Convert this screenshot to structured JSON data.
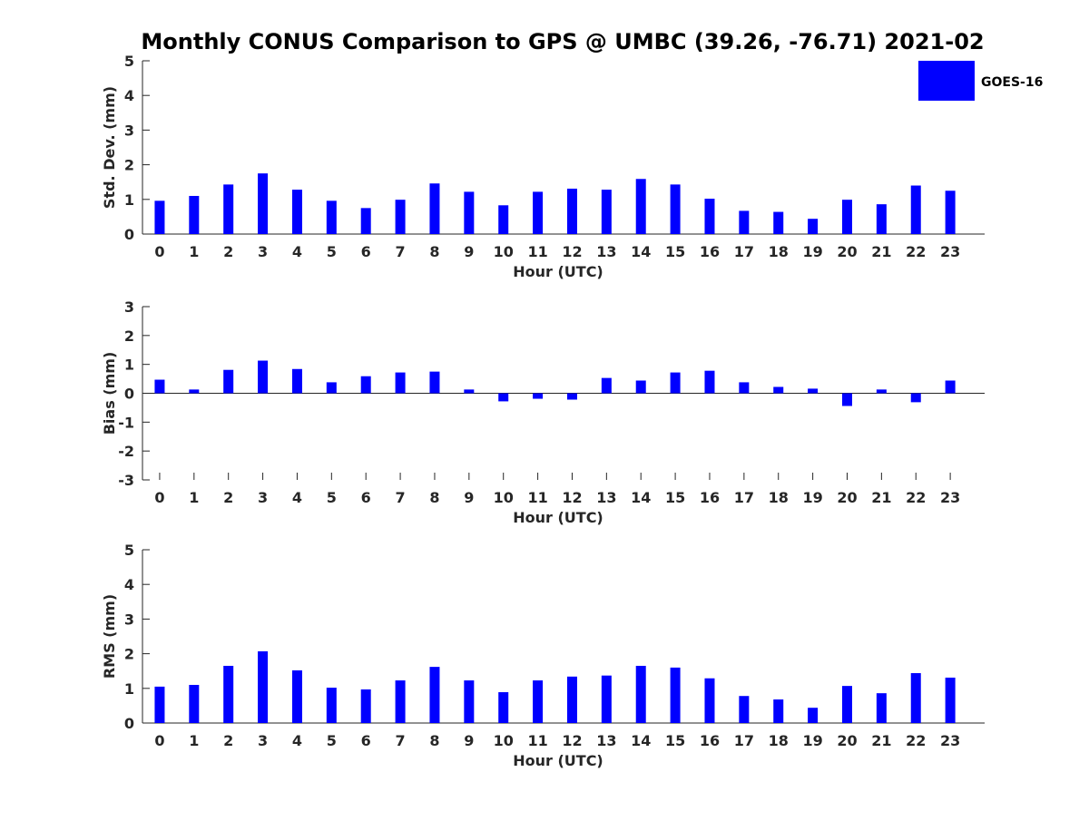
{
  "figure": {
    "title": "Monthly CONUS Comparison to GPS @ UMBC (39.26, -76.71) 2021-02",
    "legend": {
      "label": "GOES-16",
      "color": "#0000ff",
      "placement": "top-right"
    }
  },
  "chart_data": [
    {
      "type": "bar",
      "ylabel": "Std. Dev. (mm)",
      "xlabel": "Hour (UTC)",
      "ylim": [
        0,
        5
      ],
      "yticks": [
        "0",
        "1",
        "2",
        "3",
        "4",
        "5"
      ],
      "categories": [
        "0",
        "1",
        "2",
        "3",
        "4",
        "5",
        "6",
        "7",
        "8",
        "9",
        "10",
        "11",
        "12",
        "13",
        "14",
        "15",
        "16",
        "17",
        "18",
        "19",
        "20",
        "21",
        "22",
        "23"
      ],
      "series": [
        {
          "name": "GOES-16",
          "color": "#0000ff",
          "values": [
            0.96,
            1.1,
            1.43,
            1.75,
            1.28,
            0.96,
            0.75,
            0.99,
            1.46,
            1.22,
            0.83,
            1.22,
            1.31,
            1.28,
            1.59,
            1.43,
            1.02,
            0.67,
            0.64,
            0.44,
            0.99,
            0.86,
            1.4,
            1.25
          ]
        }
      ]
    },
    {
      "type": "bar",
      "ylabel": "Bias (mm)",
      "xlabel": "Hour (UTC)",
      "ylim": [
        -3,
        3
      ],
      "yticks": [
        "-3",
        "-2",
        "-1",
        "0",
        "1",
        "2",
        "3"
      ],
      "categories": [
        "0",
        "1",
        "2",
        "3",
        "4",
        "5",
        "6",
        "7",
        "8",
        "9",
        "10",
        "11",
        "12",
        "13",
        "14",
        "15",
        "16",
        "17",
        "18",
        "19",
        "20",
        "21",
        "22",
        "23"
      ],
      "series": [
        {
          "name": "GOES-16",
          "color": "#0000ff",
          "values": [
            0.47,
            0.13,
            0.81,
            1.13,
            0.84,
            0.38,
            0.59,
            0.72,
            0.75,
            0.13,
            -0.28,
            -0.19,
            -0.22,
            0.53,
            0.44,
            0.72,
            0.78,
            0.38,
            0.22,
            0.16,
            -0.44,
            0.13,
            -0.31,
            0.44
          ]
        }
      ]
    },
    {
      "type": "bar",
      "ylabel": "RMS (mm)",
      "xlabel": "Hour (UTC)",
      "ylim": [
        0,
        5
      ],
      "yticks": [
        "0",
        "1",
        "2",
        "3",
        "4",
        "5"
      ],
      "categories": [
        "0",
        "1",
        "2",
        "3",
        "4",
        "5",
        "6",
        "7",
        "8",
        "9",
        "10",
        "11",
        "12",
        "13",
        "14",
        "15",
        "16",
        "17",
        "18",
        "19",
        "20",
        "21",
        "22",
        "23"
      ],
      "series": [
        {
          "name": "GOES-16",
          "color": "#0000ff",
          "values": [
            1.05,
            1.1,
            1.65,
            2.07,
            1.52,
            1.02,
            0.97,
            1.23,
            1.62,
            1.23,
            0.89,
            1.23,
            1.34,
            1.37,
            1.65,
            1.6,
            1.29,
            0.78,
            0.68,
            0.44,
            1.07,
            0.86,
            1.44,
            1.31
          ]
        }
      ]
    }
  ]
}
